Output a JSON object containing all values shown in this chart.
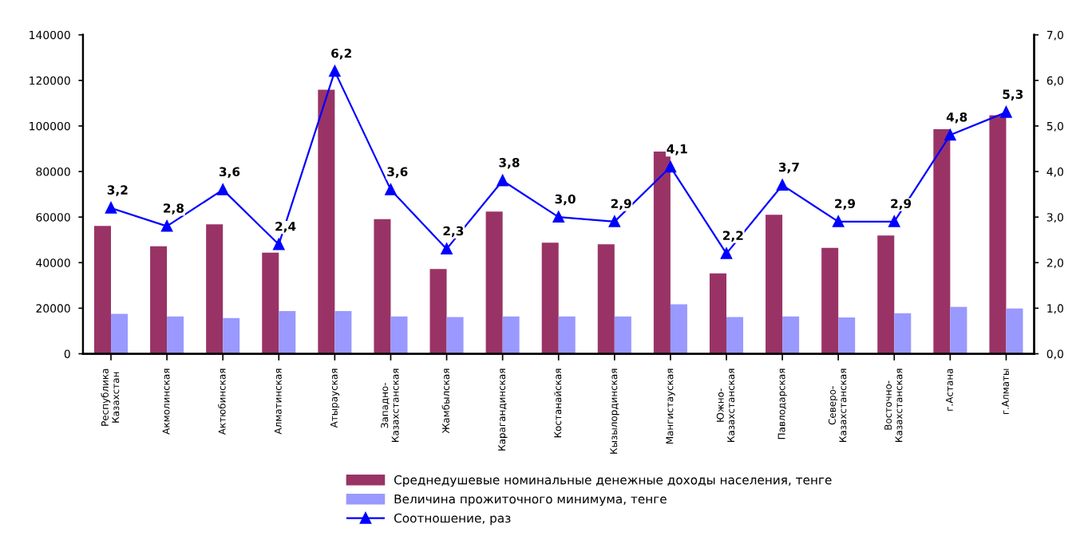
{
  "chart_data": {
    "type": "bar",
    "categories": [
      "Республика\nКазахстан",
      "Акмолинская",
      "Актюбинская",
      "Алматинская",
      "Атырауская",
      "Западно-\nКазахстанская",
      "Жамбылская",
      "Карагандинская",
      "Костанайская",
      "Кызылординская",
      "Мангистауская",
      "Южно-\nКазахстанская",
      "Павлодарская",
      "Северо-\nКазахстанская",
      "Восточно-\nКазахстанская",
      "г.Астана",
      "г.Алматы"
    ],
    "series": [
      {
        "name": "Среднедушевые номинальные денежные доходы населения, тенге",
        "color": "#993366",
        "values": [
          56100,
          47200,
          56800,
          44400,
          115900,
          59100,
          37200,
          62400,
          48800,
          48100,
          88800,
          35300,
          61000,
          46500,
          51900,
          98600,
          104700
        ]
      },
      {
        "name": "Величина прожиточного минимума, тенге",
        "color": "#9999ff",
        "values": [
          17500,
          16400,
          15700,
          18700,
          18700,
          16400,
          16100,
          16400,
          16400,
          16400,
          21700,
          16100,
          16400,
          15900,
          17800,
          20600,
          19900
        ]
      },
      {
        "name": "Соотношение, раз",
        "type": "line",
        "axis": "y2",
        "color": "#0000ff",
        "marker": "triangle",
        "values": [
          3.2,
          2.8,
          3.6,
          2.4,
          6.2,
          3.6,
          2.3,
          3.8,
          3.0,
          2.9,
          4.1,
          2.2,
          3.7,
          2.9,
          2.9,
          4.8,
          5.3
        ],
        "value_labels": [
          "3,2",
          "2,8",
          "3,6",
          "2,4",
          "6,2",
          "3,6",
          "2,3",
          "3,8",
          "3,0",
          "2,9",
          "4,1",
          "2,2",
          "3,7",
          "2,9",
          "2,9",
          "4,8",
          "5,3"
        ]
      }
    ],
    "ylim": [
      0,
      140000
    ],
    "yticks": [
      0,
      20000,
      40000,
      60000,
      80000,
      100000,
      120000,
      140000
    ],
    "y2lim": [
      0,
      7
    ],
    "y2ticks": [
      {
        "value": 0,
        "label": "0,0"
      },
      {
        "value": 1,
        "label": "1,0"
      },
      {
        "value": 2,
        "label": "2,0"
      },
      {
        "value": 3,
        "label": "3,0"
      },
      {
        "value": 4,
        "label": "4,0"
      },
      {
        "value": 5,
        "label": "5,0"
      },
      {
        "value": 6,
        "label": "6,0"
      },
      {
        "value": 7,
        "label": "7,0"
      }
    ],
    "legend": "bottom",
    "grid": false
  }
}
